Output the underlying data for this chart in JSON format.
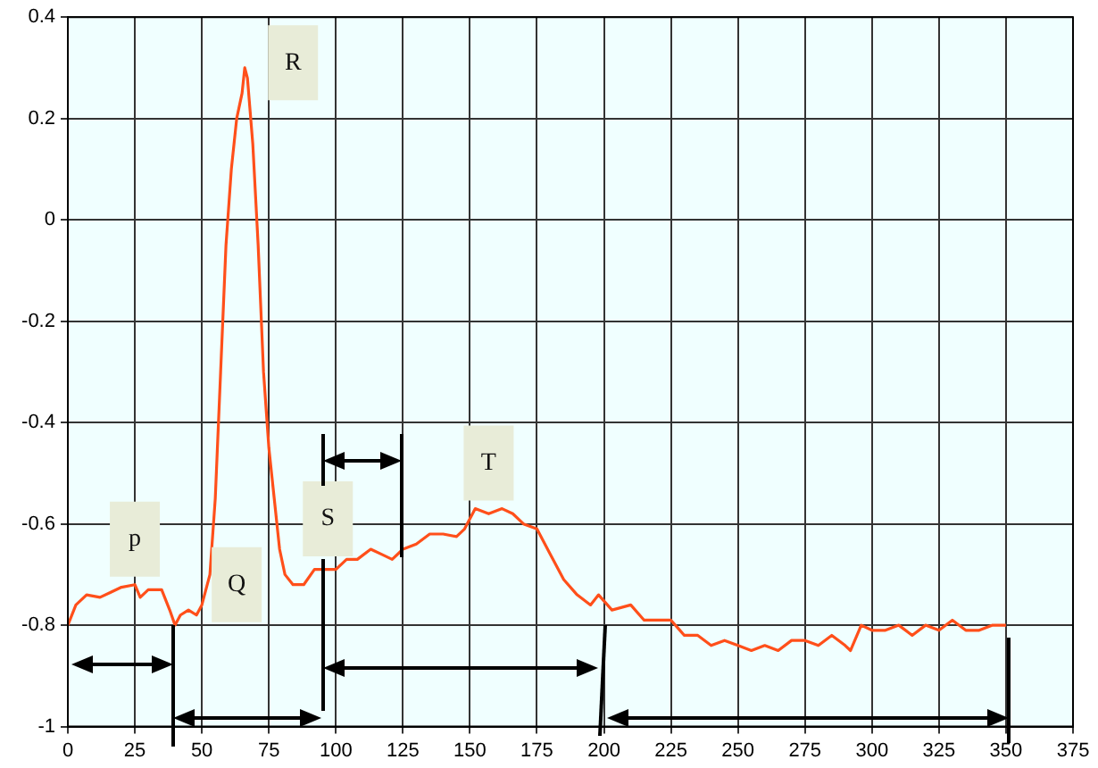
{
  "chart_data": {
    "type": "line",
    "x": [
      0,
      3,
      7,
      12,
      16,
      20,
      25,
      27,
      30,
      35,
      38,
      40,
      42,
      45,
      48,
      50,
      53,
      55,
      57,
      59,
      61,
      63,
      65,
      66,
      67,
      69,
      71,
      73,
      75,
      77,
      79,
      81,
      84,
      88,
      92,
      96,
      100,
      104,
      108,
      113,
      117,
      121,
      125,
      130,
      135,
      140,
      145,
      148,
      152,
      157,
      162,
      166,
      170,
      175,
      180,
      185,
      190,
      195,
      198,
      203,
      210,
      215,
      220,
      225,
      230,
      235,
      240,
      245,
      250,
      255,
      260,
      265,
      270,
      275,
      280,
      285,
      290,
      292,
      296,
      300,
      305,
      310,
      315,
      320,
      325,
      330,
      335,
      340,
      345,
      350
    ],
    "series": [
      {
        "color": "#ff4f1a",
        "values": [
          -0.8,
          -0.76,
          -0.74,
          -0.745,
          -0.735,
          -0.725,
          -0.72,
          -0.745,
          -0.73,
          -0.73,
          -0.77,
          -0.8,
          -0.78,
          -0.77,
          -0.78,
          -0.76,
          -0.7,
          -0.55,
          -0.3,
          -0.05,
          0.1,
          0.2,
          0.25,
          0.3,
          0.28,
          0.15,
          -0.05,
          -0.3,
          -0.45,
          -0.55,
          -0.65,
          -0.7,
          -0.72,
          -0.72,
          -0.69,
          -0.69,
          -0.69,
          -0.67,
          -0.67,
          -0.65,
          -0.66,
          -0.67,
          -0.65,
          -0.64,
          -0.62,
          -0.62,
          -0.625,
          -0.61,
          -0.57,
          -0.58,
          -0.57,
          -0.58,
          -0.6,
          -0.61,
          -0.66,
          -0.71,
          -0.74,
          -0.76,
          -0.74,
          -0.77,
          -0.76,
          -0.79,
          -0.79,
          -0.79,
          -0.82,
          -0.82,
          -0.84,
          -0.83,
          -0.84,
          -0.85,
          -0.84,
          -0.85,
          -0.83,
          -0.83,
          -0.84,
          -0.82,
          -0.84,
          -0.85,
          -0.8,
          -0.81,
          -0.81,
          -0.8,
          -0.82,
          -0.8,
          -0.81,
          -0.79,
          -0.81,
          -0.81,
          -0.8,
          -0.8
        ]
      }
    ],
    "xlim": [
      0,
      375
    ],
    "xticks": [
      0,
      25,
      50,
      75,
      100,
      125,
      150,
      175,
      200,
      225,
      250,
      275,
      300,
      325,
      350,
      375
    ],
    "ylim": [
      -1,
      0.4
    ],
    "yticks": [
      -1,
      -0.8,
      -0.6,
      -0.4,
      -0.2,
      0,
      0.2,
      0.4
    ],
    "grid": true,
    "marker": "none",
    "line_style": "solid",
    "annotations": [
      {
        "text": "p",
        "x": 25,
        "y": -0.63
      },
      {
        "text": "Q",
        "x": 63,
        "y": -0.72
      },
      {
        "text": "R",
        "x": 84,
        "y": 0.31
      },
      {
        "text": "S",
        "x": 97,
        "y": -0.59
      },
      {
        "text": "T",
        "x": 157,
        "y": -0.48
      }
    ],
    "legend": false
  }
}
